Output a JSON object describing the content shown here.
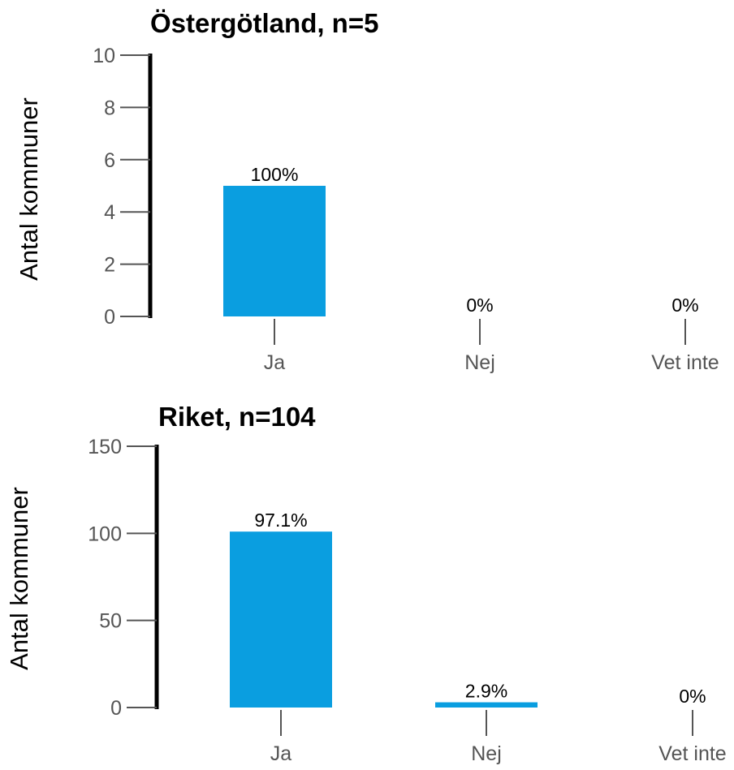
{
  "chart_data": [
    {
      "type": "bar",
      "title": "Östergötland, n=5",
      "ylabel": "Antal kommuner",
      "xlabel": "",
      "categories": [
        "Ja",
        "Nej",
        "Vet inte"
      ],
      "values": [
        5,
        0,
        0
      ],
      "data_labels": [
        "100%",
        "0%",
        "0%"
      ],
      "ylim": [
        0,
        10
      ],
      "yticks": [
        0,
        2,
        4,
        6,
        8,
        10
      ],
      "ytick_labels": [
        "0",
        "2",
        "4",
        "6",
        "8",
        "10"
      ],
      "bar_color": "#0a9ee0",
      "grid": false,
      "legend": "none"
    },
    {
      "type": "bar",
      "title": "Riket, n=104",
      "ylabel": "Antal kommuner",
      "xlabel": "",
      "categories": [
        "Ja",
        "Nej",
        "Vet inte"
      ],
      "values": [
        101,
        3,
        0
      ],
      "data_labels": [
        "97.1%",
        "2.9%",
        "0%"
      ],
      "ylim": [
        0,
        150
      ],
      "yticks": [
        0,
        50,
        100,
        150
      ],
      "ytick_labels": [
        "0",
        "50",
        "100",
        "150"
      ],
      "bar_color": "#0a9ee0",
      "grid": false,
      "legend": "none"
    }
  ]
}
